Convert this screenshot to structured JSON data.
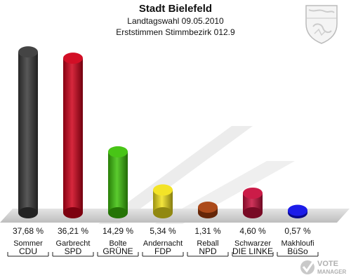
{
  "header": {
    "title": "Stadt Bielefeld",
    "subtitle1": "Landtagswahl 09.05.2010",
    "subtitle2": "Erststimmen Stimmbezirk 012.9"
  },
  "chart_data": {
    "type": "bar",
    "title": "Stadt Bielefeld",
    "ylim": [
      0,
      40
    ],
    "categories": [
      "Sommer",
      "Garbrecht",
      "Bolte",
      "Andernacht",
      "Reball",
      "Schwarzer",
      "Makhloufi"
    ],
    "parties": [
      "CDU",
      "SPD",
      "GRÜNE",
      "FDP",
      "NPD",
      "DIE LINKE",
      "BüSo"
    ],
    "values": [
      37.68,
      36.21,
      14.29,
      5.34,
      1.31,
      4.6,
      0.57
    ],
    "value_labels": [
      "37,68 %",
      "36,21 %",
      "14,29 %",
      "5,34 %",
      "1,31 %",
      "4,60 %",
      "0,57 %"
    ],
    "colors": [
      "#3a3a3a",
      "#d0021b",
      "#3ec20a",
      "#f2e21c",
      "#a8400e",
      "#c8103e",
      "#1010e8"
    ],
    "grid": false,
    "legend": "none"
  },
  "logo": {
    "crest_name": "nrw-coat-of-arms",
    "vote_manager_line1": "VOTE",
    "vote_manager_line2": "MANAGER"
  }
}
